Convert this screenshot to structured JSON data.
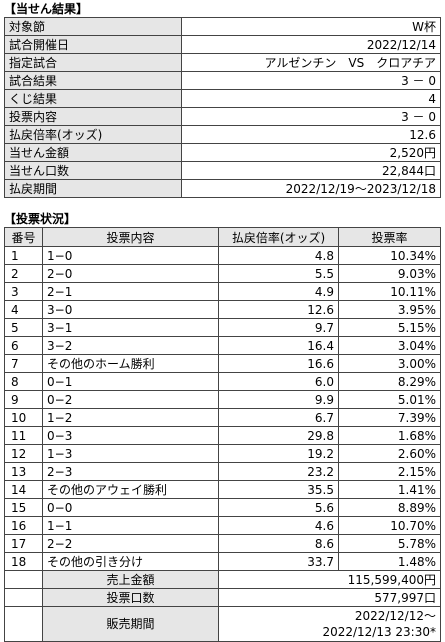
{
  "result_section": {
    "title": "【当せん結果】",
    "rows": [
      {
        "label": "対象節",
        "value": "W杯"
      },
      {
        "label": "試合開催日",
        "value": "2022/12/14"
      },
      {
        "label": "指定試合",
        "value": "アルゼンチン　VS　クロアチア"
      },
      {
        "label": "試合結果",
        "value": "3 － 0"
      },
      {
        "label": "くじ結果",
        "value": "4"
      },
      {
        "label": "投票内容",
        "value": "3 － 0"
      },
      {
        "label": "払戻倍率(オッズ)",
        "value": "12.6"
      },
      {
        "label": "当せん金額",
        "value": "2,520円"
      },
      {
        "label": "当せん口数",
        "value": "22,844口"
      },
      {
        "label": "払戻期間",
        "value": "2022/12/19～2023/12/18"
      }
    ]
  },
  "vote_section": {
    "title": "【投票状況】",
    "headers": {
      "no": "番号",
      "content": "投票内容",
      "odds": "払戻倍率(オッズ)",
      "rate": "投票率"
    },
    "rows": [
      {
        "no": "1",
        "content": "1−0",
        "odds": "4.8",
        "rate": "10.34%"
      },
      {
        "no": "2",
        "content": "2−0",
        "odds": "5.5",
        "rate": "9.03%"
      },
      {
        "no": "3",
        "content": "2−1",
        "odds": "4.9",
        "rate": "10.11%"
      },
      {
        "no": "4",
        "content": "3−0",
        "odds": "12.6",
        "rate": "3.95%"
      },
      {
        "no": "5",
        "content": "3−1",
        "odds": "9.7",
        "rate": "5.15%"
      },
      {
        "no": "6",
        "content": "3−2",
        "odds": "16.4",
        "rate": "3.04%"
      },
      {
        "no": "7",
        "content": "その他のホーム勝利",
        "odds": "16.6",
        "rate": "3.00%"
      },
      {
        "no": "8",
        "content": "0−1",
        "odds": "6.0",
        "rate": "8.29%"
      },
      {
        "no": "9",
        "content": "0−2",
        "odds": "9.9",
        "rate": "5.01%"
      },
      {
        "no": "10",
        "content": "1−2",
        "odds": "6.7",
        "rate": "7.39%"
      },
      {
        "no": "11",
        "content": "0−3",
        "odds": "29.8",
        "rate": "1.68%"
      },
      {
        "no": "12",
        "content": "1−3",
        "odds": "19.2",
        "rate": "2.60%"
      },
      {
        "no": "13",
        "content": "2−3",
        "odds": "23.2",
        "rate": "2.15%"
      },
      {
        "no": "14",
        "content": "その他のアウェイ勝利",
        "odds": "35.5",
        "rate": "1.41%"
      },
      {
        "no": "15",
        "content": "0−0",
        "odds": "5.6",
        "rate": "8.89%"
      },
      {
        "no": "16",
        "content": "1−1",
        "odds": "4.6",
        "rate": "10.70%"
      },
      {
        "no": "17",
        "content": "2−2",
        "odds": "8.6",
        "rate": "5.78%"
      },
      {
        "no": "18",
        "content": "その他の引き分け",
        "odds": "33.7",
        "rate": "1.48%"
      }
    ],
    "footer": {
      "sales_label": "売上金額",
      "sales_value": "115,599,400円",
      "count_label": "投票口数",
      "count_value": "577,997口",
      "period_label": "販売期間",
      "period_line1": "2022/12/12～",
      "period_line2": "2022/12/13 23:30*"
    }
  }
}
